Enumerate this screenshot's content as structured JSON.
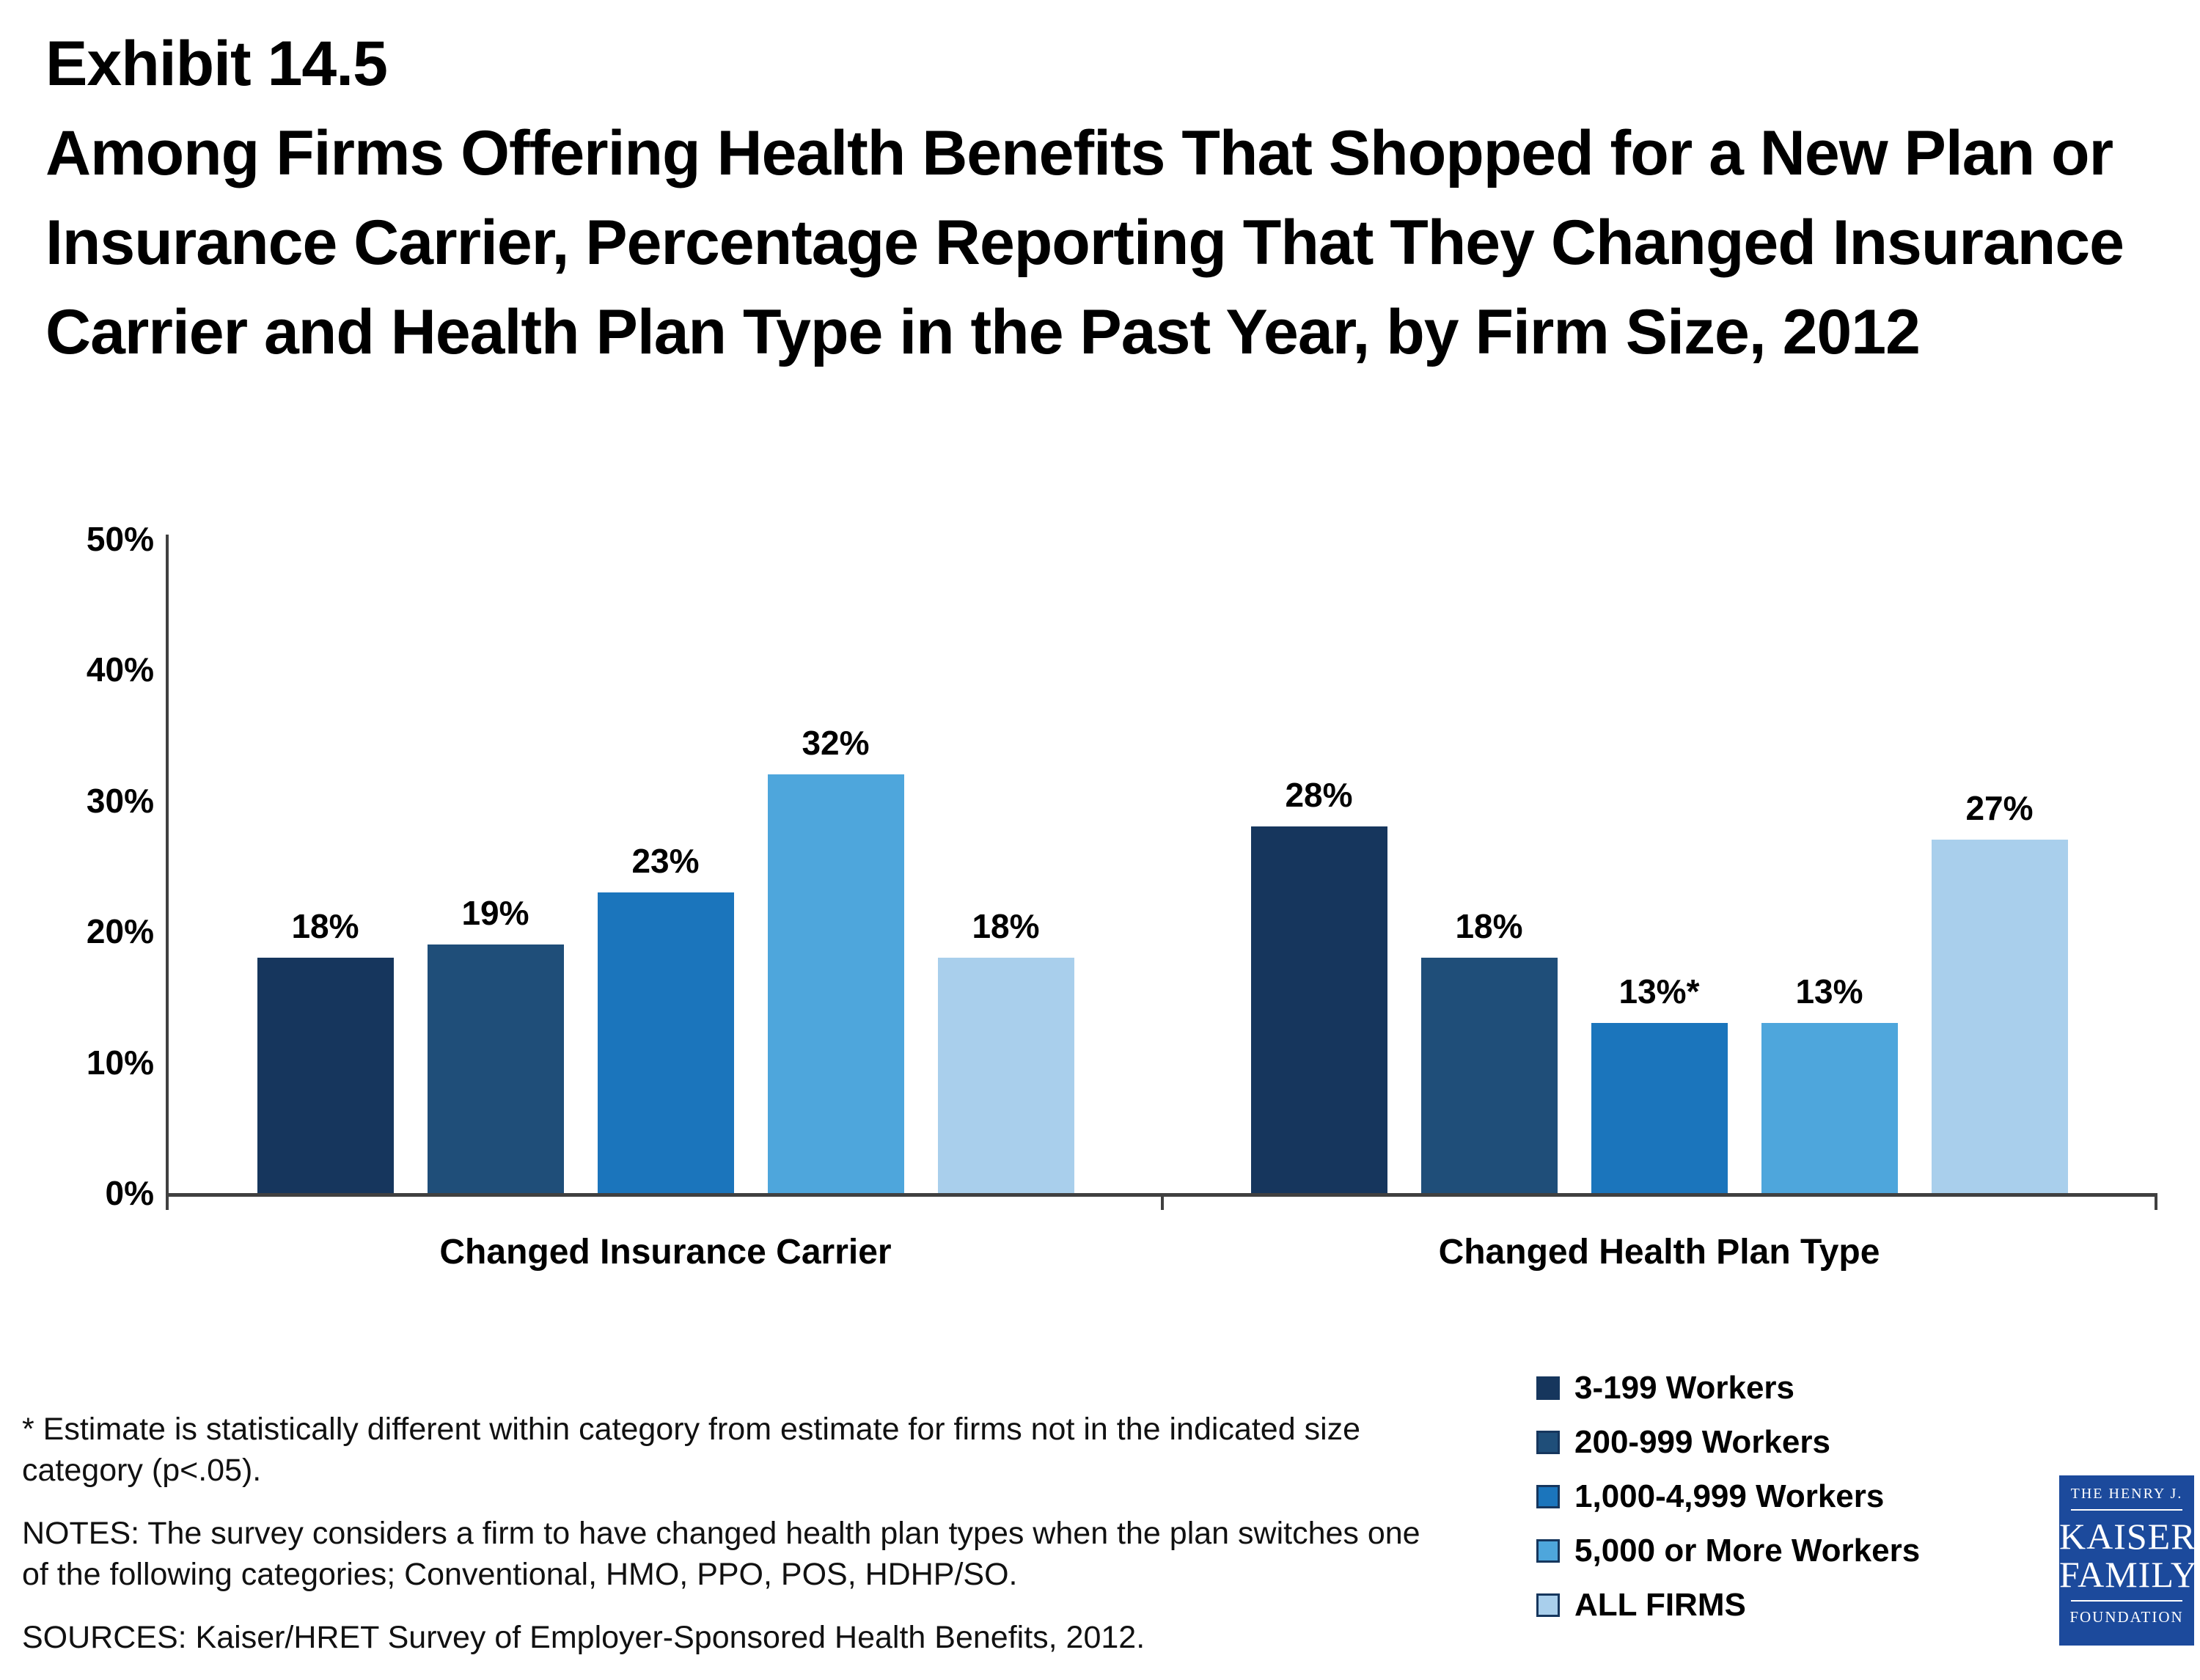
{
  "title": {
    "exhibit": "Exhibit 14.5",
    "text": "Among Firms Offering Health Benefits That Shopped for a New Plan or Insurance Carrier, Percentage Reporting That They Changed Insurance Carrier and Health Plan Type in the Past Year, by Firm Size, 2012"
  },
  "chart_data": {
    "type": "bar",
    "title": "Exhibit 14.5 — Among Firms Offering Health Benefits That Shopped for a New Plan or Insurance Carrier, Percentage Reporting That They Changed Insurance Carrier and Health Plan Type in the Past Year, by Firm Size, 2012",
    "categories": [
      "Changed Insurance Carrier",
      "Changed Health Plan Type"
    ],
    "series": [
      {
        "name": "3-199 Workers",
        "color": "#16365d",
        "values": [
          18,
          28
        ],
        "labels": [
          "18%",
          "28%"
        ]
      },
      {
        "name": "200-999 Workers",
        "color": "#1f4e79",
        "values": [
          19,
          18
        ],
        "labels": [
          "19%",
          "18%"
        ]
      },
      {
        "name": "1,000-4,999 Workers",
        "color": "#1b75bc",
        "values": [
          23,
          13
        ],
        "labels": [
          "23%",
          "13%*"
        ]
      },
      {
        "name": "5,000 or More Workers",
        "color": "#4ea6dc",
        "values": [
          32,
          13
        ],
        "labels": [
          "32%",
          "13%"
        ]
      },
      {
        "name": "ALL FIRMS",
        "color": "#a9cfec",
        "values": [
          18,
          27
        ],
        "labels": [
          "18%",
          "27%"
        ]
      }
    ],
    "ylim": [
      0,
      50
    ],
    "yticks": [
      {
        "label": "0%",
        "value": 0
      },
      {
        "label": "10%",
        "value": 10
      },
      {
        "label": "20%",
        "value": 20
      },
      {
        "label": "30%",
        "value": 30
      },
      {
        "label": "40%",
        "value": 40
      },
      {
        "label": "50%",
        "value": 50
      }
    ],
    "grid": false,
    "legend_position": "bottom-right",
    "axis_color": "#404040"
  },
  "footnotes": {
    "asterisk": "* Estimate is statistically different within category from estimate for firms not in the indicated size category (p<.05).",
    "notes": "NOTES: The survey considers a firm to have changed health plan types when the plan switches one of the following categories; Conventional, HMO, PPO, POS, HDHP/SO.",
    "sources": "SOURCES: Kaiser/HRET Survey of Employer-Sponsored Health Benefits, 2012."
  },
  "logo": {
    "top": "THE HENRY J.",
    "line1": "KAISER",
    "line2": "FAMILY",
    "bottom": "FOUNDATION"
  }
}
